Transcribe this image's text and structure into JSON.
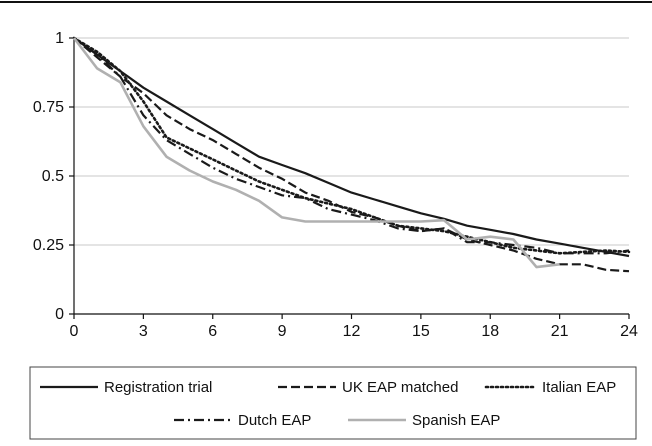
{
  "chart_data": {
    "type": "line",
    "title": "",
    "xlabel": "",
    "ylabel": "",
    "xlim": [
      0,
      24
    ],
    "ylim": [
      0,
      1
    ],
    "x_ticks": [
      0,
      3,
      6,
      9,
      12,
      15,
      18,
      21,
      24
    ],
    "y_ticks": [
      0,
      0.25,
      0.5,
      0.75,
      1
    ],
    "x_tick_labels": [
      "0",
      "3",
      "6",
      "9",
      "12",
      "15",
      "18",
      "21",
      "24"
    ],
    "y_tick_labels": [
      "0",
      "0.25",
      "0.5",
      "0.75",
      "1"
    ],
    "grid": "horizontal",
    "legend_position": "bottom",
    "series": [
      {
        "name": "Registration trial",
        "color": "#1a1a1a",
        "style": "solid",
        "x": [
          0,
          1,
          2,
          3,
          4,
          5,
          6,
          7,
          8,
          9,
          10,
          11,
          12,
          13,
          14,
          15,
          16,
          17,
          18,
          19,
          20,
          21,
          22,
          23,
          24
        ],
        "y": [
          1.0,
          0.94,
          0.88,
          0.82,
          0.77,
          0.72,
          0.67,
          0.62,
          0.57,
          0.54,
          0.51,
          0.475,
          0.44,
          0.415,
          0.39,
          0.365,
          0.345,
          0.32,
          0.305,
          0.29,
          0.27,
          0.255,
          0.24,
          0.225,
          0.21
        ]
      },
      {
        "name": "UK EAP matched",
        "color": "#1a1a1a",
        "style": "dashed",
        "x": [
          0,
          1,
          2,
          3,
          4,
          5,
          6,
          7,
          8,
          9,
          10,
          11,
          12,
          13,
          14,
          15,
          16,
          17,
          18,
          19,
          20,
          21,
          22,
          23,
          24
        ],
        "y": [
          1.0,
          0.93,
          0.86,
          0.8,
          0.72,
          0.67,
          0.63,
          0.58,
          0.53,
          0.49,
          0.44,
          0.41,
          0.37,
          0.35,
          0.32,
          0.3,
          0.31,
          0.27,
          0.25,
          0.23,
          0.2,
          0.18,
          0.18,
          0.16,
          0.155
        ]
      },
      {
        "name": "Italian EAP",
        "color": "#1a1a1a",
        "style": "dotted",
        "x": [
          0,
          1,
          2,
          3,
          4,
          5,
          6,
          7,
          8,
          9,
          10,
          11,
          12,
          13,
          14,
          15,
          16,
          17,
          18,
          19,
          20,
          21,
          22,
          23,
          24
        ],
        "y": [
          1.0,
          0.95,
          0.88,
          0.77,
          0.64,
          0.6,
          0.56,
          0.52,
          0.48,
          0.45,
          0.42,
          0.4,
          0.38,
          0.35,
          0.32,
          0.31,
          0.3,
          0.28,
          0.26,
          0.24,
          0.23,
          0.22,
          0.225,
          0.23,
          0.225
        ]
      },
      {
        "name": "Dutch EAP",
        "color": "#1a1a1a",
        "style": "dashdot",
        "x": [
          0,
          1,
          2,
          3,
          4,
          5,
          6,
          7,
          8,
          9,
          10,
          11,
          12,
          13,
          14,
          15,
          16,
          17,
          18,
          19,
          20,
          21,
          22,
          23,
          24
        ],
        "y": [
          1.0,
          0.94,
          0.86,
          0.72,
          0.63,
          0.58,
          0.53,
          0.49,
          0.46,
          0.43,
          0.42,
          0.38,
          0.36,
          0.34,
          0.31,
          0.3,
          0.31,
          0.26,
          0.26,
          0.25,
          0.24,
          0.22,
          0.22,
          0.22,
          0.23
        ]
      },
      {
        "name": "Spanish EAP",
        "color": "#b0b0b0",
        "style": "solid",
        "x": [
          0,
          1,
          2,
          3,
          4,
          5,
          6,
          7,
          8,
          9,
          10,
          11,
          12,
          13,
          14,
          15,
          16,
          17,
          18,
          19,
          20,
          21
        ],
        "y": [
          1.0,
          0.89,
          0.84,
          0.68,
          0.57,
          0.52,
          0.48,
          0.45,
          0.41,
          0.35,
          0.335,
          0.335,
          0.335,
          0.335,
          0.335,
          0.335,
          0.34,
          0.27,
          0.28,
          0.27,
          0.17,
          0.18
        ]
      }
    ]
  }
}
